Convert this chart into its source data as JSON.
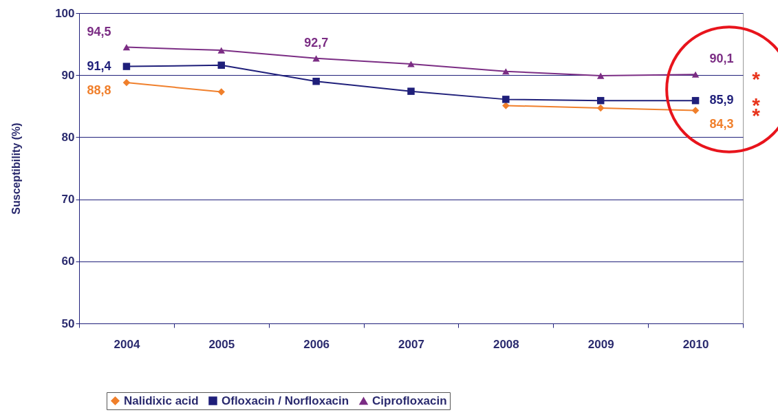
{
  "chart_data": {
    "type": "line",
    "categories": [
      "2004",
      "2005",
      "2006",
      "2007",
      "2008",
      "2009",
      "2010"
    ],
    "ylabel": "Susceptibility (%)",
    "ylim": [
      50,
      100
    ],
    "yticks": [
      50,
      60,
      70,
      80,
      90,
      100
    ],
    "grid": "y",
    "legend": "bottom",
    "series": [
      {
        "name": "Nalidixic acid",
        "color": "#f07f2b",
        "marker": "diamond",
        "values": [
          88.8,
          87.3,
          null,
          null,
          85.1,
          84.7,
          84.3
        ],
        "value_labels": [
          "88,8",
          null,
          null,
          null,
          null,
          null,
          "84,3"
        ]
      },
      {
        "name": "Ofloxacin / Norfloxacin",
        "color": "#1f1f7a",
        "marker": "square",
        "values": [
          91.4,
          91.6,
          89.0,
          87.4,
          86.1,
          85.9,
          85.9
        ],
        "value_labels": [
          "91,4",
          null,
          null,
          null,
          null,
          null,
          "85,9"
        ]
      },
      {
        "name": "Ciprofloxacin",
        "color": "#7b2d84",
        "marker": "triangle",
        "values": [
          94.5,
          94.0,
          92.7,
          91.8,
          90.6,
          89.9,
          90.1
        ],
        "value_labels": [
          "94,5",
          null,
          "92,7",
          null,
          null,
          null,
          "90,1"
        ]
      }
    ],
    "annotations": [
      {
        "text": "*",
        "x": "2010",
        "y": 90.1
      },
      {
        "text": "*",
        "x": "2010",
        "y": 85.9
      },
      {
        "text": "*",
        "x": "2010",
        "y": 84.3
      }
    ]
  }
}
